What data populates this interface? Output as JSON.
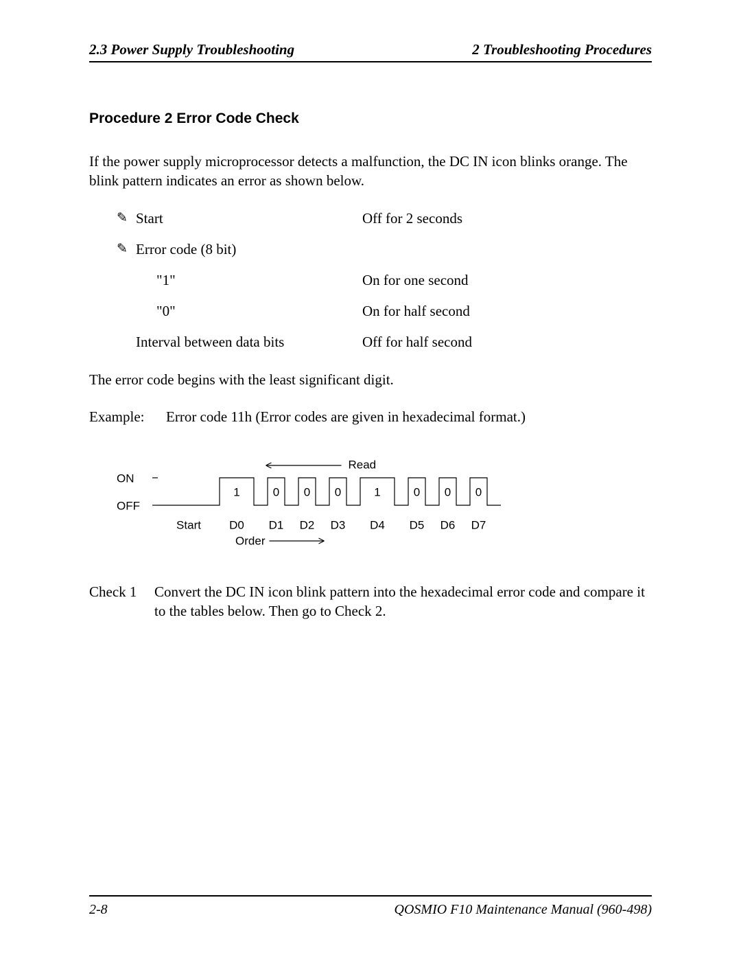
{
  "header": {
    "left": "2.3  Power Supply Troubleshooting",
    "right": "2  Troubleshooting Procedures"
  },
  "procedure": {
    "title": "Procedure 2     Error Code Check"
  },
  "intro": "If the power supply microprocessor detects a malfunction, the DC IN icon blinks orange. The blink pattern indicates an error as shown below.",
  "bullets": {
    "start_label": "Start",
    "start_value": "Off for 2 seconds",
    "errorcode_label": "Error code (8 bit)",
    "one_label": "\"1\"",
    "one_value": "On for one second",
    "zero_label": "\"0\"",
    "zero_value": "On for half second",
    "interval_label": "Interval between data bits",
    "interval_value": "Off for half second"
  },
  "lsb_text": "The error code begins with the least significant digit.",
  "example": {
    "label": "Example:",
    "text": "Error code 11h (Error codes are given in hexadecimal format.)"
  },
  "diagram": {
    "on_label": "ON",
    "off_label": "OFF",
    "read_label": "Read",
    "start_label": "Start",
    "order_label": "Order",
    "bits": [
      "1",
      "0",
      "0",
      "0",
      "1",
      "0",
      "0",
      "0"
    ],
    "d_labels": [
      "D0",
      "D1",
      "D2",
      "D3",
      "D4",
      "D5",
      "D6",
      "D7"
    ],
    "widths_one": 50,
    "widths_zero": 25,
    "gap": 20,
    "start_width": 90,
    "height_on": 40,
    "font_family": "Arial, Helvetica, sans-serif",
    "font_size": 17,
    "stroke_color": "#000000",
    "stroke_width": 1.2
  },
  "check": {
    "label": "Check 1",
    "text": "Convert the DC IN icon blink pattern into the hexadecimal error code and compare it to the tables below. Then go to Check 2."
  },
  "footer": {
    "left": "2-8",
    "right": "QOSMIO F10  Maintenance Manual (960-498)"
  }
}
